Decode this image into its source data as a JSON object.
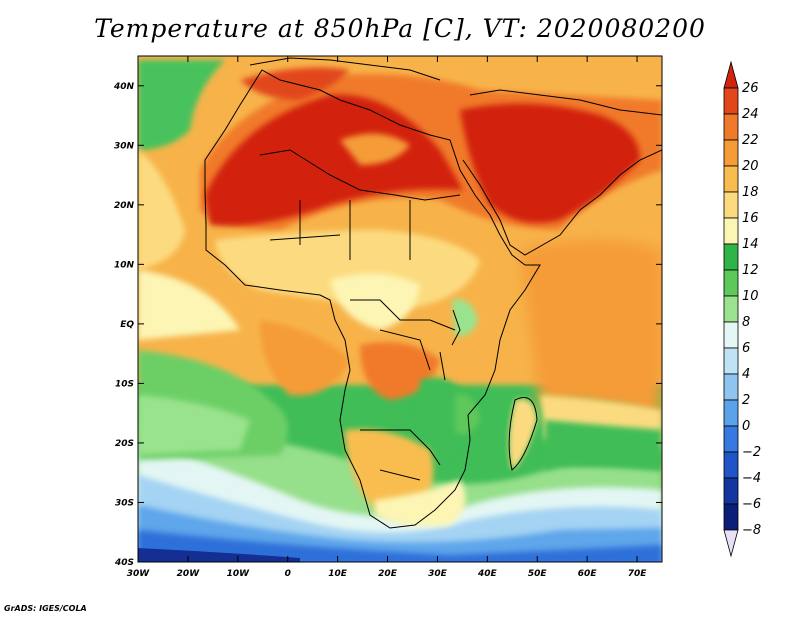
{
  "title": "Temperature at 850hPa [C], VT: 2020080200",
  "credit": "GrADS: IGES/COLA",
  "map": {
    "lon_range": [
      -30,
      75
    ],
    "lat_range": [
      -40,
      45
    ],
    "lon_ticks": [
      "30W",
      "20W",
      "10W",
      "0",
      "10E",
      "20E",
      "30E",
      "40E",
      "50E",
      "60E",
      "70E"
    ],
    "lat_ticks": [
      "40N",
      "30N",
      "20N",
      "10N",
      "EQ",
      "10S",
      "20S",
      "30S",
      "40S"
    ]
  },
  "colorbar": {
    "labels": [
      "26",
      "24",
      "22",
      "20",
      "18",
      "16",
      "14",
      "12",
      "10",
      "8",
      "6",
      "4",
      "2",
      "0",
      "−2",
      "−4",
      "−6",
      "−8"
    ],
    "colors": [
      "#d2230e",
      "#e2461b",
      "#f07a2a",
      "#f59b37",
      "#f9bd4f",
      "#fcdb80",
      "#fcf5b4",
      "#2fb447",
      "#5ec85a",
      "#9ae38e",
      "#e5f7f5",
      "#bfe2f7",
      "#8ec5f0",
      "#5aa3ea",
      "#3779e0",
      "#1f55c8",
      "#1536a0",
      "#0c1f78",
      "#e7e0f7"
    ]
  }
}
